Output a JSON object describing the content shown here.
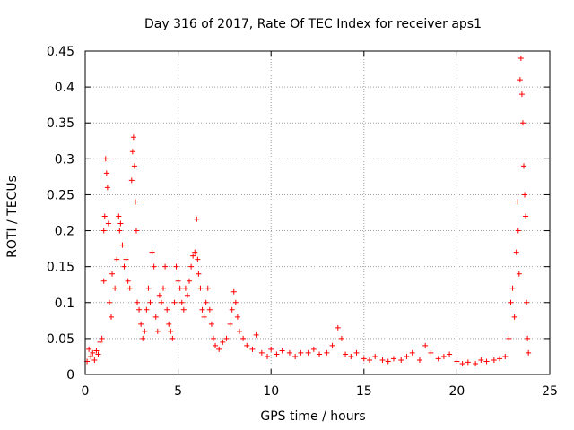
{
  "chart_data": {
    "type": "scatter",
    "title": "Day 316 of 2017, Rate Of TEC Index for receiver aps1",
    "xlabel": "GPS time / hours",
    "ylabel": "ROTI / TECUs",
    "xlim": [
      0,
      25
    ],
    "ylim": [
      0,
      0.45
    ],
    "xticks": [
      0,
      5,
      10,
      15,
      20,
      25
    ],
    "yticks": [
      0,
      0.05,
      0.1,
      0.15,
      0.2,
      0.25,
      0.3,
      0.35,
      0.4,
      0.45
    ],
    "marker": "plus",
    "grid": true,
    "color": "#ff0000",
    "series": [
      {
        "name": "aps1 ROTI",
        "points": [
          [
            0.1,
            0.018
          ],
          [
            0.2,
            0.035
          ],
          [
            0.3,
            0.025
          ],
          [
            0.4,
            0.03
          ],
          [
            0.5,
            0.02
          ],
          [
            0.6,
            0.033
          ],
          [
            0.7,
            0.028
          ],
          [
            0.8,
            0.045
          ],
          [
            0.9,
            0.05
          ],
          [
            1.0,
            0.13
          ],
          [
            1.0,
            0.2
          ],
          [
            1.05,
            0.22
          ],
          [
            1.1,
            0.3
          ],
          [
            1.15,
            0.28
          ],
          [
            1.2,
            0.26
          ],
          [
            1.25,
            0.21
          ],
          [
            1.3,
            0.1
          ],
          [
            1.4,
            0.08
          ],
          [
            1.45,
            0.14
          ],
          [
            1.6,
            0.12
          ],
          [
            1.7,
            0.16
          ],
          [
            1.8,
            0.22
          ],
          [
            1.85,
            0.2
          ],
          [
            1.9,
            0.21
          ],
          [
            2.0,
            0.18
          ],
          [
            2.1,
            0.15
          ],
          [
            2.2,
            0.16
          ],
          [
            2.3,
            0.13
          ],
          [
            2.4,
            0.12
          ],
          [
            2.5,
            0.27
          ],
          [
            2.55,
            0.31
          ],
          [
            2.6,
            0.33
          ],
          [
            2.65,
            0.29
          ],
          [
            2.7,
            0.24
          ],
          [
            2.75,
            0.2
          ],
          [
            2.8,
            0.1
          ],
          [
            2.9,
            0.09
          ],
          [
            3.0,
            0.07
          ],
          [
            3.1,
            0.05
          ],
          [
            3.2,
            0.06
          ],
          [
            3.3,
            0.09
          ],
          [
            3.4,
            0.12
          ],
          [
            3.5,
            0.1
          ],
          [
            3.6,
            0.17
          ],
          [
            3.7,
            0.15
          ],
          [
            3.8,
            0.08
          ],
          [
            3.9,
            0.06
          ],
          [
            4.0,
            0.11
          ],
          [
            4.1,
            0.1
          ],
          [
            4.2,
            0.12
          ],
          [
            4.3,
            0.15
          ],
          [
            4.4,
            0.09
          ],
          [
            4.5,
            0.07
          ],
          [
            4.6,
            0.06
          ],
          [
            4.7,
            0.05
          ],
          [
            4.8,
            0.1
          ],
          [
            4.9,
            0.15
          ],
          [
            5.0,
            0.13
          ],
          [
            5.1,
            0.12
          ],
          [
            5.2,
            0.1
          ],
          [
            5.3,
            0.09
          ],
          [
            5.4,
            0.12
          ],
          [
            5.5,
            0.11
          ],
          [
            5.6,
            0.13
          ],
          [
            5.7,
            0.15
          ],
          [
            5.8,
            0.165
          ],
          [
            5.9,
            0.17
          ],
          [
            6.0,
            0.216
          ],
          [
            6.05,
            0.16
          ],
          [
            6.1,
            0.14
          ],
          [
            6.2,
            0.12
          ],
          [
            6.3,
            0.09
          ],
          [
            6.4,
            0.08
          ],
          [
            6.5,
            0.1
          ],
          [
            6.6,
            0.12
          ],
          [
            6.7,
            0.09
          ],
          [
            6.8,
            0.07
          ],
          [
            6.9,
            0.05
          ],
          [
            7.0,
            0.04
          ],
          [
            7.2,
            0.035
          ],
          [
            7.4,
            0.045
          ],
          [
            7.6,
            0.05
          ],
          [
            7.8,
            0.07
          ],
          [
            7.9,
            0.09
          ],
          [
            8.0,
            0.115
          ],
          [
            8.1,
            0.1
          ],
          [
            8.2,
            0.08
          ],
          [
            8.3,
            0.06
          ],
          [
            8.5,
            0.05
          ],
          [
            8.7,
            0.04
          ],
          [
            9.0,
            0.035
          ],
          [
            9.2,
            0.055
          ],
          [
            9.5,
            0.03
          ],
          [
            9.8,
            0.025
          ],
          [
            10.0,
            0.035
          ],
          [
            10.3,
            0.028
          ],
          [
            10.6,
            0.033
          ],
          [
            11.0,
            0.03
          ],
          [
            11.3,
            0.025
          ],
          [
            11.6,
            0.03
          ],
          [
            12.0,
            0.03
          ],
          [
            12.3,
            0.035
          ],
          [
            12.6,
            0.028
          ],
          [
            13.0,
            0.03
          ],
          [
            13.3,
            0.04
          ],
          [
            13.6,
            0.065
          ],
          [
            13.8,
            0.05
          ],
          [
            14.0,
            0.028
          ],
          [
            14.3,
            0.025
          ],
          [
            14.6,
            0.03
          ],
          [
            15.0,
            0.022
          ],
          [
            15.3,
            0.02
          ],
          [
            15.6,
            0.025
          ],
          [
            16.0,
            0.02
          ],
          [
            16.3,
            0.018
          ],
          [
            16.6,
            0.022
          ],
          [
            17.0,
            0.02
          ],
          [
            17.3,
            0.025
          ],
          [
            17.6,
            0.03
          ],
          [
            18.0,
            0.02
          ],
          [
            18.3,
            0.04
          ],
          [
            18.6,
            0.03
          ],
          [
            19.0,
            0.022
          ],
          [
            19.3,
            0.025
          ],
          [
            19.6,
            0.028
          ],
          [
            20.0,
            0.018
          ],
          [
            20.3,
            0.015
          ],
          [
            20.6,
            0.017
          ],
          [
            21.0,
            0.015
          ],
          [
            21.3,
            0.02
          ],
          [
            21.6,
            0.018
          ],
          [
            22.0,
            0.02
          ],
          [
            22.3,
            0.022
          ],
          [
            22.6,
            0.025
          ],
          [
            22.8,
            0.05
          ],
          [
            22.9,
            0.1
          ],
          [
            23.0,
            0.12
          ],
          [
            23.1,
            0.08
          ],
          [
            23.2,
            0.17
          ],
          [
            23.25,
            0.24
          ],
          [
            23.3,
            0.2
          ],
          [
            23.35,
            0.14
          ],
          [
            23.4,
            0.41
          ],
          [
            23.45,
            0.44
          ],
          [
            23.5,
            0.39
          ],
          [
            23.55,
            0.35
          ],
          [
            23.6,
            0.29
          ],
          [
            23.65,
            0.25
          ],
          [
            23.7,
            0.22
          ],
          [
            23.75,
            0.1
          ],
          [
            23.8,
            0.05
          ],
          [
            23.85,
            0.03
          ]
        ]
      }
    ]
  }
}
